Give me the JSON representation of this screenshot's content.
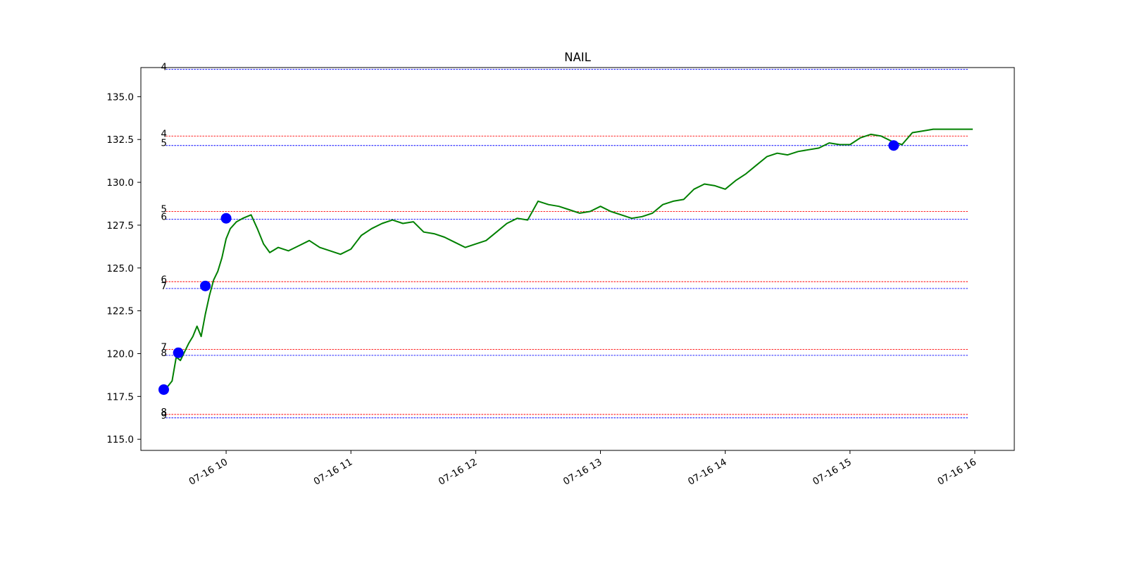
{
  "chart_data": {
    "type": "line",
    "title": "NAIL",
    "xlabel": "",
    "ylabel": "",
    "x_ticks": [
      "07-16 10",
      "07-16 11",
      "07-16 12",
      "07-16 13",
      "07-16 14",
      "07-16 15",
      "07-16 16"
    ],
    "y_ticks": [
      "115.0",
      "117.5",
      "120.0",
      "122.5",
      "125.0",
      "127.5",
      "130.0",
      "132.5",
      "135.0"
    ],
    "ylim": [
      114.35,
      136.7
    ],
    "xlim": [
      "07-16 09:19",
      "07-16 16:19"
    ],
    "grid": false,
    "colors": {
      "price": "#008000",
      "marker": "#0000ff",
      "upper_level": "#ff0000",
      "lower_level": "#0000ff"
    },
    "series": [
      {
        "x": [
          "09:30",
          "09:32",
          "09:34",
          "09:36",
          "09:38",
          "09:40",
          "09:42",
          "09:44",
          "09:46",
          "09:48",
          "09:50",
          "09:52",
          "09:54",
          "09:56",
          "09:58",
          "10:00",
          "10:02",
          "10:05",
          "10:08",
          "10:12",
          "10:15",
          "10:18",
          "10:21",
          "10:25",
          "10:30",
          "10:35",
          "10:40",
          "10:45",
          "10:50",
          "10:55",
          "11:00",
          "11:05",
          "11:10",
          "11:15",
          "11:20",
          "11:25",
          "11:30",
          "11:35",
          "11:40",
          "11:45",
          "11:50",
          "11:55",
          "12:00",
          "12:05",
          "12:10",
          "12:15",
          "12:20",
          "12:25",
          "12:30",
          "12:35",
          "12:40",
          "12:45",
          "12:50",
          "12:55",
          "13:00",
          "13:05",
          "13:10",
          "13:15",
          "13:20",
          "13:25",
          "13:30",
          "13:35",
          "13:40",
          "13:45",
          "13:50",
          "13:55",
          "14:00",
          "14:05",
          "14:10",
          "14:15",
          "14:20",
          "14:25",
          "14:30",
          "14:35",
          "14:40",
          "14:45",
          "14:50",
          "14:55",
          "15:00",
          "15:05",
          "15:10",
          "15:15",
          "15:20",
          "15:25",
          "15:30",
          "15:35",
          "15:40",
          "15:45",
          "15:50",
          "15:55",
          "15:59"
        ],
        "values": [
          117.9,
          118.1,
          118.4,
          119.8,
          119.6,
          120.1,
          120.6,
          121.0,
          121.6,
          121.0,
          122.3,
          123.4,
          124.3,
          124.8,
          125.6,
          126.7,
          127.3,
          127.7,
          127.9,
          128.1,
          127.3,
          126.4,
          125.9,
          126.2,
          126.0,
          126.3,
          126.6,
          126.2,
          126.0,
          125.8,
          126.1,
          126.9,
          127.3,
          127.6,
          127.8,
          127.6,
          127.7,
          127.1,
          127.0,
          126.8,
          126.5,
          126.2,
          126.4,
          126.6,
          127.1,
          127.6,
          127.9,
          127.8,
          128.9,
          128.7,
          128.6,
          128.4,
          128.2,
          128.3,
          128.6,
          128.3,
          128.1,
          127.9,
          128.0,
          128.2,
          128.7,
          128.9,
          129.0,
          129.6,
          129.9,
          129.8,
          129.6,
          130.1,
          130.5,
          131.0,
          131.5,
          131.7,
          131.6,
          131.8,
          131.9,
          132.0,
          132.3,
          132.2,
          132.2,
          132.6,
          132.8,
          132.7,
          132.4,
          132.2,
          132.9,
          133.0,
          133.1,
          133.1,
          133.1,
          133.1,
          133.1
        ]
      }
    ],
    "markers": [
      {
        "x": "09:30",
        "y": 117.9
      },
      {
        "x": "09:37",
        "y": 120.05
      },
      {
        "x": "09:50",
        "y": 123.95
      },
      {
        "x": "10:00",
        "y": 127.9
      },
      {
        "x": "15:21",
        "y": 132.15
      }
    ],
    "levels": [
      {
        "label": "4",
        "y": 136.6,
        "color": "#0000ff"
      },
      {
        "label": "4",
        "y": 132.7,
        "color": "#ff0000"
      },
      {
        "label": "5",
        "y": 132.15,
        "color": "#0000ff"
      },
      {
        "label": "5",
        "y": 128.3,
        "color": "#ff0000"
      },
      {
        "label": "6",
        "y": 127.85,
        "color": "#0000ff"
      },
      {
        "label": "6",
        "y": 124.2,
        "color": "#ff0000"
      },
      {
        "label": "7",
        "y": 123.8,
        "color": "#0000ff"
      },
      {
        "label": "7",
        "y": 120.25,
        "color": "#ff0000"
      },
      {
        "label": "8",
        "y": 119.9,
        "color": "#0000ff"
      },
      {
        "label": "8",
        "y": 116.45,
        "color": "#ff0000"
      },
      {
        "label": "9",
        "y": 116.25,
        "color": "#0000ff"
      }
    ],
    "level_span": [
      "09:31",
      "15:57"
    ]
  }
}
